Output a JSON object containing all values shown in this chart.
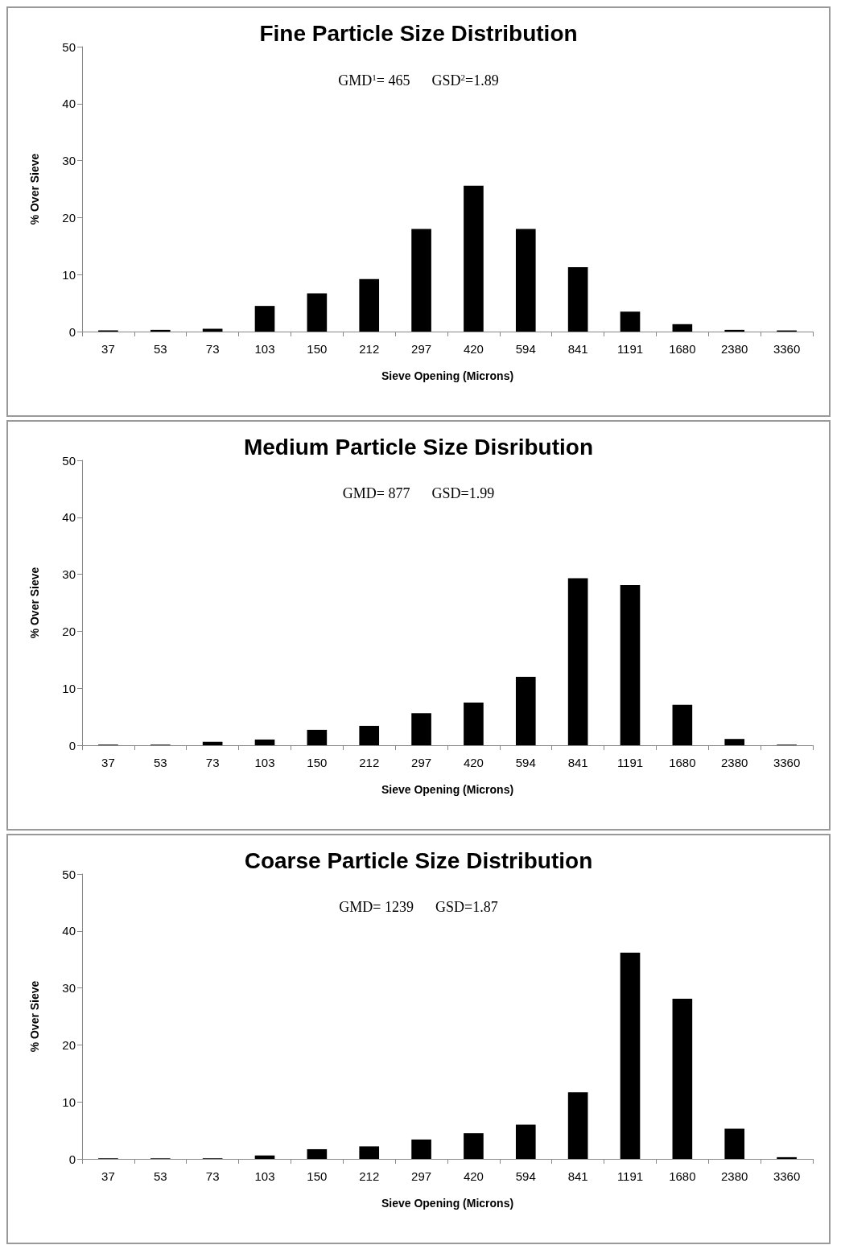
{
  "chart_data": [
    {
      "type": "bar",
      "title": "Fine Particle Size Distribution",
      "annotations": [
        "GMD$^{1}$= 465      GSD$^{2}$=1.89"
      ],
      "xlabel": "Sieve Opening (Microns)",
      "ylabel": "% Over Sieve",
      "categories": [
        "37",
        "53",
        "73",
        "103",
        "150",
        "212",
        "297",
        "420",
        "594",
        "841",
        "1191",
        "1680",
        "2380",
        "3360"
      ],
      "values": [
        0.2,
        0.3,
        0.5,
        4.5,
        6.7,
        9.2,
        18.0,
        25.6,
        18.0,
        11.3,
        3.5,
        1.3,
        0.3,
        0.2
      ],
      "color": "#000000",
      "ylim": [
        0,
        50
      ],
      "yticks": [
        0,
        10,
        20,
        30,
        40,
        50
      ],
      "grid": false
    },
    {
      "type": "bar",
      "title": "Medium Particle Size Disribution",
      "annotations": [
        "GMD= 877      GSD=1.99"
      ],
      "xlabel": "Sieve Opening (Microns)",
      "ylabel": "% Over Sieve",
      "categories": [
        "37",
        "53",
        "73",
        "103",
        "150",
        "212",
        "297",
        "420",
        "594",
        "841",
        "1191",
        "1680",
        "2380",
        "3360"
      ],
      "values": [
        0.1,
        0.1,
        0.6,
        1.0,
        2.7,
        3.4,
        5.6,
        7.5,
        12.0,
        29.3,
        28.1,
        7.1,
        1.1,
        0.1
      ],
      "color": "#000000",
      "ylim": [
        0,
        50
      ],
      "yticks": [
        0,
        10,
        20,
        30,
        40,
        50
      ],
      "grid": false
    },
    {
      "type": "bar",
      "title": "Coarse Particle Size Distribution",
      "annotations": [
        "GMD= 1239      GSD=1.87"
      ],
      "xlabel": "Sieve Opening (Microns)",
      "ylabel": "% Over Sieve",
      "categories": [
        "37",
        "53",
        "73",
        "103",
        "150",
        "212",
        "297",
        "420",
        "594",
        "841",
        "1191",
        "1680",
        "2380",
        "3360"
      ],
      "values": [
        0.1,
        0.1,
        0.1,
        0.6,
        1.7,
        2.2,
        3.4,
        4.5,
        6.0,
        11.7,
        36.2,
        28.1,
        5.3,
        0.3
      ],
      "color": "#000000",
      "ylim": [
        0,
        50
      ],
      "yticks": [
        0,
        10,
        20,
        30,
        40,
        50
      ],
      "grid": false
    }
  ]
}
